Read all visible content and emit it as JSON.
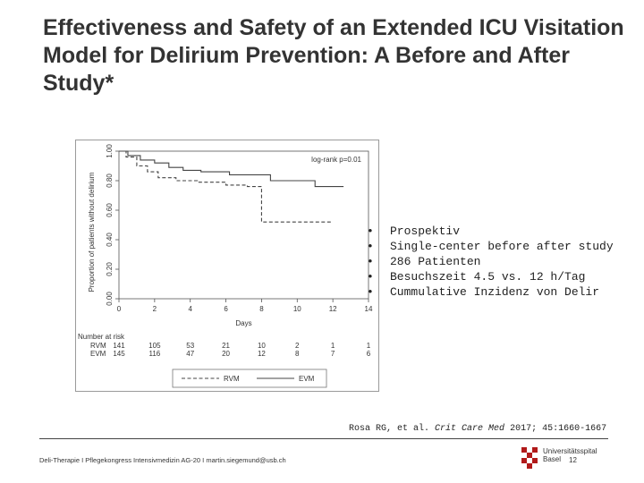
{
  "slide": {
    "title": "Effectiveness and Safety of an Extended ICU Visitation Model for Delirium Prevention: A Before and After Study*",
    "bullets": [
      "Prospektiv",
      "Single-center before after study",
      "286 Patienten",
      "Besuchszeit 4.5 vs. 12 h/Tag",
      "Cummulative Inzidenz von Delir"
    ],
    "citation": {
      "authors": "Rosa RG, et al.",
      "journal": "Crit Care Med",
      "details": "2017; 45:1660-1667"
    },
    "footer": "Deli-Therapie I Pflegekongress Intensivmedizin AG-20 I martin.siegemund@usb.ch",
    "logo": {
      "line1": "Universitätsspital",
      "line2": "Basel"
    },
    "page_number": "12"
  },
  "chart_data": {
    "type": "line",
    "subtype": "kaplan-meier",
    "title": "",
    "xlabel": "Days",
    "ylabel": "Proportion of patients without delirium",
    "xlim": [
      0,
      14
    ],
    "ylim": [
      0,
      1
    ],
    "x_ticks": [
      0,
      2,
      4,
      6,
      8,
      10,
      12,
      14
    ],
    "y_ticks": [
      "0.00",
      "0.20",
      "0.40",
      "0.60",
      "0.80",
      "1.00"
    ],
    "annotation": "log-rank p=0.01",
    "series": [
      {
        "name": "RVM",
        "style": "dashed",
        "steps": [
          [
            0,
            1.0
          ],
          [
            0.4,
            0.96
          ],
          [
            1.0,
            0.9
          ],
          [
            1.6,
            0.86
          ],
          [
            2.2,
            0.82
          ],
          [
            3.2,
            0.8
          ],
          [
            4.4,
            0.79
          ],
          [
            6.0,
            0.77
          ],
          [
            7.2,
            0.76
          ],
          [
            8.0,
            0.52
          ],
          [
            12.0,
            0.52
          ]
        ]
      },
      {
        "name": "EVM",
        "style": "solid",
        "steps": [
          [
            0,
            1.0
          ],
          [
            0.5,
            0.97
          ],
          [
            1.2,
            0.94
          ],
          [
            2.0,
            0.92
          ],
          [
            2.8,
            0.89
          ],
          [
            3.6,
            0.87
          ],
          [
            4.6,
            0.86
          ],
          [
            6.2,
            0.84
          ],
          [
            8.5,
            0.8
          ],
          [
            11.0,
            0.76
          ],
          [
            12.6,
            0.76
          ]
        ]
      }
    ],
    "risk_table": {
      "label": "Number at risk",
      "times": [
        0,
        2,
        4,
        6,
        8,
        10,
        12,
        14
      ],
      "rows": [
        {
          "name": "RVM",
          "values": [
            "141",
            "105",
            "53",
            "21",
            "10",
            "2",
            "1",
            "1"
          ]
        },
        {
          "name": "EVM",
          "values": [
            "145",
            "116",
            "47",
            "20",
            "12",
            "8",
            "7",
            "6"
          ]
        }
      ]
    },
    "legend": {
      "placement": "bottom",
      "entries": [
        "RVM",
        "EVM"
      ]
    }
  }
}
